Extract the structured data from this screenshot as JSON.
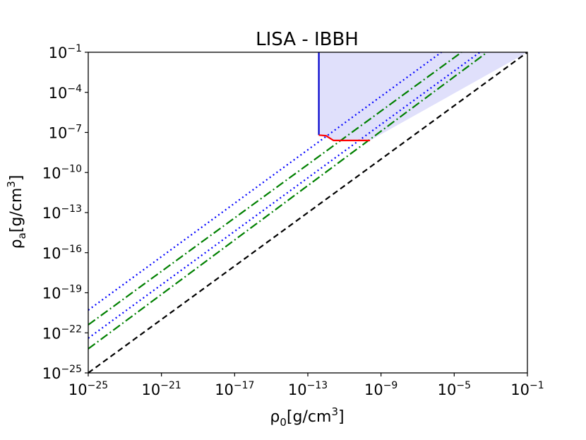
{
  "chart_data": {
    "type": "line",
    "title": "LISA - IBBH",
    "xlabel": {
      "symbol": "ρ",
      "sub": "0",
      "unit": "[g/cm",
      "sup": "3",
      "close": "]"
    },
    "ylabel": {
      "symbol": "ρ",
      "sub": "a",
      "unit": "[g/cm",
      "sup": "3",
      "close": "]"
    },
    "x_scale": "log",
    "y_scale": "log",
    "xlim_exp": [
      -25,
      -1
    ],
    "ylim_exp": [
      -25,
      -1
    ],
    "x_ticks": [
      {
        "base": "10",
        "exp": "−25",
        "value_exp": -25
      },
      {
        "base": "10",
        "exp": "−21",
        "value_exp": -21
      },
      {
        "base": "10",
        "exp": "−17",
        "value_exp": -17
      },
      {
        "base": "10",
        "exp": "−13",
        "value_exp": -13
      },
      {
        "base": "10",
        "exp": "−9",
        "value_exp": -9
      },
      {
        "base": "10",
        "exp": "−5",
        "value_exp": -5
      },
      {
        "base": "10",
        "exp": "−1",
        "value_exp": -1
      }
    ],
    "y_ticks": [
      {
        "base": "10",
        "exp": "−25",
        "value_exp": -25
      },
      {
        "base": "10",
        "exp": "−22",
        "value_exp": -22
      },
      {
        "base": "10",
        "exp": "−19",
        "value_exp": -19
      },
      {
        "base": "10",
        "exp": "−16",
        "value_exp": -16
      },
      {
        "base": "10",
        "exp": "−13",
        "value_exp": -13
      },
      {
        "base": "10",
        "exp": "−10",
        "value_exp": -10
      },
      {
        "base": "10",
        "exp": "−7",
        "value_exp": -7
      },
      {
        "base": "10",
        "exp": "−4",
        "value_exp": -4
      },
      {
        "base": "10",
        "exp": "−1",
        "value_exp": -1
      }
    ],
    "series": [
      {
        "style": "black-dashed",
        "color": "#000000",
        "dash": "8,5",
        "points_exp": [
          [
            -25,
            -25
          ],
          [
            -1,
            -1
          ]
        ]
      },
      {
        "style": "green-dashdot-1",
        "color": "#008000",
        "dash": "12,4,2,4",
        "points_exp": [
          [
            -25,
            -23.2
          ],
          [
            -3.2,
            -1
          ]
        ]
      },
      {
        "style": "blue-dotted-1",
        "color": "#0000ff",
        "dash": "2,4",
        "points_exp": [
          [
            -25,
            -22.4
          ],
          [
            -3.6,
            -1
          ]
        ]
      },
      {
        "style": "green-dashdot-2",
        "color": "#008000",
        "dash": "12,4,2,4",
        "points_exp": [
          [
            -25,
            -21.4
          ],
          [
            -4.6,
            -1
          ]
        ]
      },
      {
        "style": "blue-dotted-2",
        "color": "#0000ff",
        "dash": "2,4",
        "points_exp": [
          [
            -25,
            -20.3
          ],
          [
            -5.7,
            -1
          ]
        ]
      }
    ],
    "region": {
      "fill": "#e0e0fb",
      "points_exp": [
        [
          -12.4,
          -7.2
        ],
        [
          -12.4,
          -1
        ],
        [
          -1,
          -1
        ],
        [
          -9.6,
          -7.6
        ],
        [
          -11.6,
          -7.6
        ],
        [
          -12.4,
          -7.2
        ]
      ]
    },
    "boundaries": [
      {
        "name": "vertical-boundary",
        "color": "#0000cc",
        "points_exp": [
          [
            -12.4,
            -1
          ],
          [
            -12.4,
            -7.2
          ]
        ]
      },
      {
        "name": "horizontal-boundary",
        "color": "#ff0000",
        "points_exp": [
          [
            -12.4,
            -7.2
          ],
          [
            -12.0,
            -7.25
          ],
          [
            -11.6,
            -7.6
          ],
          [
            -9.6,
            -7.6
          ]
        ]
      }
    ],
    "grid": false,
    "legend": "none"
  }
}
